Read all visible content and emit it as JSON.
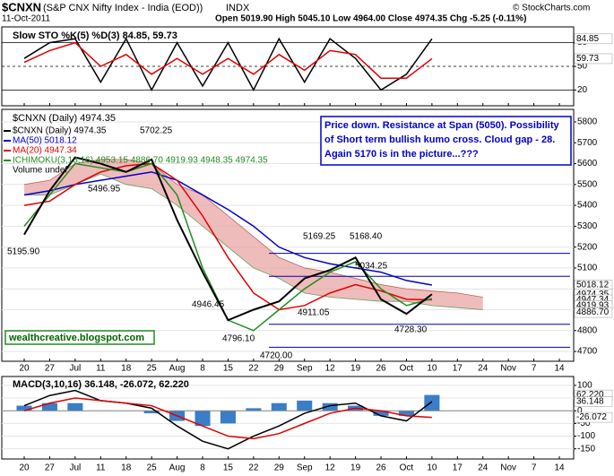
{
  "header": {
    "symbol": "$CNXN",
    "name": "(S&P CNX Nifty Index - India (EOD))",
    "exchange": "INDX",
    "date": "11-Oct-2011",
    "quote": "Open 5019.90 High 5045.10 Low 4964.00 Close 4974.35 Chg -5.25 (-0.11%)",
    "credit": "© StockCharts.com"
  },
  "chart_data": [
    {
      "type": "line",
      "title": "Slow STO %K(5) %D(3) 84.85, 59.73",
      "categories": [
        "20",
        "27",
        "Jul",
        "11",
        "18",
        "25",
        "Aug",
        "8",
        "15",
        "22",
        "29",
        "Sep",
        "12",
        "19",
        "26",
        "Oct",
        "10",
        "17",
        "24",
        "Nov",
        "7",
        "14"
      ],
      "series": [
        {
          "name": "%K",
          "color": "#000000",
          "values": [
            60,
            80,
            85,
            30,
            85,
            20,
            80,
            25,
            80,
            20,
            85,
            30,
            85,
            60,
            20,
            40,
            84.85,
            null,
            null,
            null,
            null,
            null
          ]
        },
        {
          "name": "%D",
          "color": "#e00000",
          "values": [
            55,
            70,
            80,
            50,
            65,
            40,
            60,
            40,
            60,
            40,
            65,
            45,
            70,
            65,
            35,
            35,
            59.73,
            null,
            null,
            null,
            null,
            null
          ]
        }
      ],
      "ylim": [
        0,
        100
      ],
      "yticks": [
        20,
        50,
        80
      ],
      "right_labels": [
        {
          "value": 84.85,
          "label": "84.85"
        },
        {
          "value": 59.73,
          "label": "59.73"
        }
      ]
    },
    {
      "type": "line",
      "title": "$CNXN (Daily) 4974.35",
      "categories": [
        "20",
        "27",
        "Jul",
        "11",
        "18",
        "25",
        "Aug",
        "8",
        "15",
        "22",
        "29",
        "Sep",
        "12",
        "19",
        "26",
        "Oct",
        "10",
        "17",
        "24",
        "Nov",
        "7",
        "14"
      ],
      "series": [
        {
          "name": "MA(50) 5018.12",
          "color": "#0000cc",
          "values": [
            5450,
            5470,
            5500,
            5520,
            5540,
            5560,
            5520,
            5450,
            5380,
            5300,
            5200,
            5150,
            5120,
            5100,
            5080,
            5040,
            5018.12,
            null,
            null,
            null,
            null,
            null
          ]
        },
        {
          "name": "MA(20) 4947.34",
          "color": "#e00000",
          "values": [
            5400,
            5420,
            5500,
            5560,
            5590,
            5600,
            5520,
            5350,
            5150,
            4980,
            4900,
            4920,
            4980,
            5020,
            4990,
            4950,
            4947.34,
            null,
            null,
            null,
            null,
            null
          ]
        },
        {
          "name": "ICHIMOKU(3,13,16) 4953.15 4886.70 4919.93 4948.35 4974.35",
          "color": "#228b22",
          "values": [
            5300,
            5450,
            5600,
            5580,
            5560,
            5600,
            5450,
            5100,
            4850,
            4800,
            4900,
            5000,
            5080,
            5130,
            5000,
            4920,
            4953.15,
            null,
            null,
            null,
            null,
            null
          ]
        },
        {
          "name": "$CNXN (Daily) 4974.35",
          "color": "#000000",
          "values": [
            5260,
            5470,
            5630,
            5600,
            5560,
            5620,
            5330,
            5080,
            4850,
            4900,
            4940,
            5050,
            5090,
            5150,
            4950,
            4880,
            4974.35,
            null,
            null,
            null,
            null,
            null
          ]
        }
      ],
      "cloud": {
        "color": "#e8a0a0",
        "upper": [
          5500,
          5520,
          5600,
          5620,
          5620,
          5600,
          5500,
          5450,
          5350,
          5250,
          5150,
          5100,
          5080,
          5050,
          5020,
          5000,
          4990,
          4980,
          4960,
          null,
          null,
          null
        ],
        "lower": [
          5450,
          5450,
          5500,
          5550,
          5500,
          5480,
          5400,
          5300,
          5200,
          5100,
          5050,
          4980,
          4960,
          4950,
          4940,
          4940,
          4920,
          4910,
          4900,
          null,
          null,
          null
        ]
      },
      "volume_label": "Volume undef",
      "hlines": [
        5170,
        5060,
        4830,
        4720
      ],
      "ylim": [
        4653,
        5860
      ],
      "yticks": [
        4700,
        4800,
        4900,
        5000,
        5100,
        5200,
        5300,
        5400,
        5500,
        5600,
        5700,
        5800
      ],
      "right_labels": [
        {
          "value": 5018.12,
          "label": "5018.12"
        },
        {
          "value": 4974.35,
          "label": "4974.35"
        },
        {
          "value": 4947.34,
          "label": "4947.34"
        },
        {
          "value": 4919.93,
          "label": "4919.93"
        },
        {
          "value": 4886.7,
          "label": "4886.70"
        }
      ],
      "annotations": [
        "5702.25",
        "5496.95",
        "5195.90",
        "4946.45",
        "4796.10",
        "4720.00",
        "4911.05",
        "5169.25",
        "5168.40",
        "5034.25",
        "4728.30"
      ],
      "note": "Price down. Resistance at Span (5050). Possibility of Short term bullish kumo cross. Cloud gap - 28. Again 5170 is in the picture...???",
      "watermark": "wealthcreative.blogspot.com"
    },
    {
      "type": "line",
      "title": "MACD(3,10,16) 36.148, -26.072, 62.220",
      "categories": [
        "20",
        "27",
        "Jul",
        "11",
        "18",
        "25",
        "Aug",
        "8",
        "15",
        "22",
        "29",
        "Sep",
        "12",
        "19",
        "26",
        "Oct",
        "10",
        "17",
        "24",
        "Nov",
        "7",
        "14"
      ],
      "series": [
        {
          "name": "MACD",
          "color": "#000000",
          "values": [
            20,
            60,
            80,
            40,
            30,
            10,
            -60,
            -120,
            -150,
            -100,
            -60,
            -10,
            20,
            30,
            -20,
            -40,
            36.148,
            null,
            null,
            null,
            null,
            null
          ]
        },
        {
          "name": "Signal",
          "color": "#e00000",
          "values": [
            0,
            30,
            50,
            40,
            30,
            20,
            -20,
            -60,
            -100,
            -110,
            -90,
            -50,
            -10,
            10,
            0,
            -20,
            -26.072,
            null,
            null,
            null,
            null,
            null
          ]
        }
      ],
      "histogram": {
        "color": "#3a7dc9",
        "values": [
          20,
          30,
          30,
          0,
          0,
          -10,
          -40,
          -60,
          -50,
          10,
          30,
          40,
          30,
          20,
          -20,
          -20,
          62.22,
          null,
          null,
          null,
          null,
          null
        ]
      },
      "ylim": [
        -190,
        135
      ],
      "yticks": [
        -150,
        -100,
        -50,
        0,
        50,
        100
      ],
      "right_labels": [
        {
          "value": 62.22,
          "label": "62.220"
        },
        {
          "value": 36.148,
          "label": "36.148"
        },
        {
          "value": -26.072,
          "label": "-26.072"
        }
      ]
    }
  ]
}
